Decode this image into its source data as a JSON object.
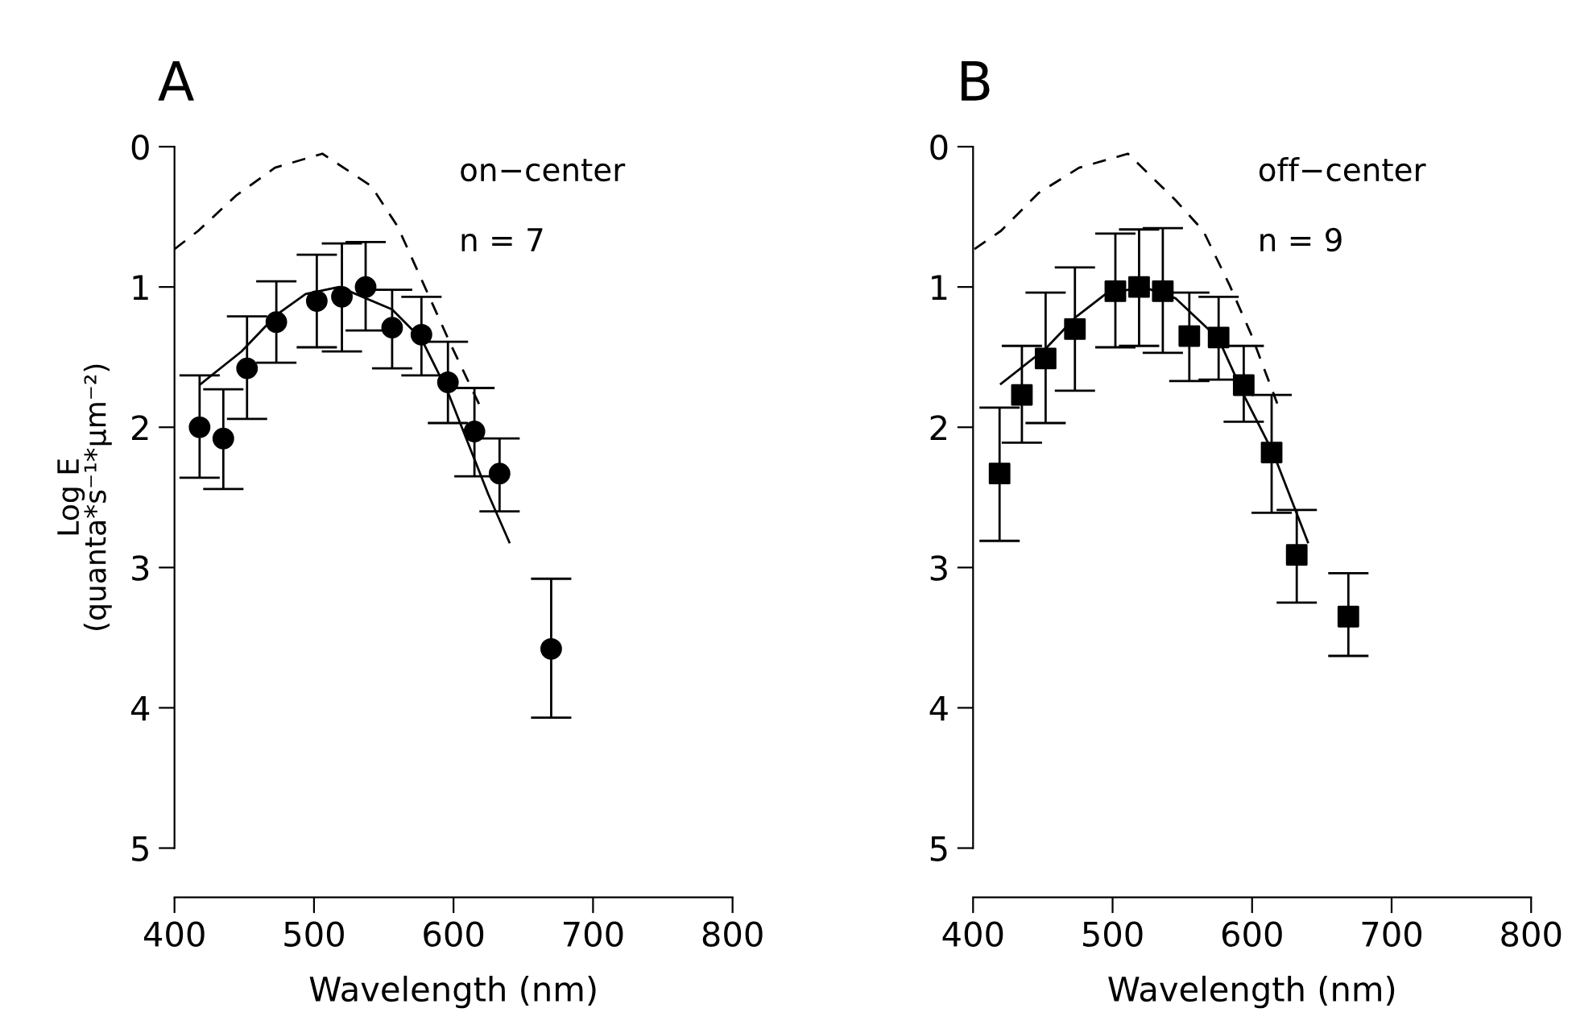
{
  "chart_data": [
    {
      "type": "scatter",
      "title": "A",
      "xlabel": "Wavelength (nm)",
      "ylabel": "Log E\n(quanta*s⁻¹*μm⁻²)",
      "annotations": [
        "on−center",
        "n = 7"
      ],
      "xlim": [
        400,
        800
      ],
      "xticks": [
        400,
        500,
        600,
        700,
        800
      ],
      "ylim": [
        5,
        0
      ],
      "yticks": [
        0,
        1,
        2,
        3,
        4,
        5
      ],
      "series": [
        {
          "type": "line",
          "color": "#000000",
          "line_style": "dashed",
          "x": [
            400,
            417,
            444,
            472,
            506,
            541,
            560,
            579,
            598,
            620
          ],
          "values": [
            0.73,
            0.6,
            0.35,
            0.15,
            0.05,
            0.28,
            0.57,
            0.99,
            1.41,
            1.87
          ]
        },
        {
          "type": "line",
          "color": "#000000",
          "line_style": "solid",
          "x": [
            419,
            448,
            473,
            494,
            518,
            556,
            577,
            596,
            625,
            640
          ],
          "values": [
            1.69,
            1.46,
            1.2,
            1.05,
            1.0,
            1.16,
            1.37,
            1.75,
            2.48,
            2.82
          ]
        },
        {
          "color": "#000000",
          "marker": "circle",
          "x": [
            418,
            435,
            452,
            473,
            502,
            520,
            537,
            556,
            577,
            596,
            615,
            633,
            670
          ],
          "values": [
            2.0,
            2.08,
            1.58,
            1.25,
            1.1,
            1.07,
            1.0,
            1.29,
            1.34,
            1.68,
            2.03,
            2.33,
            3.58
          ],
          "errors": [
            [
              1.63,
              2.36
            ],
            [
              1.73,
              2.44
            ],
            [
              1.21,
              1.94
            ],
            [
              0.96,
              1.54
            ],
            [
              0.77,
              1.43
            ],
            [
              0.69,
              1.46
            ],
            [
              0.68,
              1.31
            ],
            [
              1.02,
              1.58
            ],
            [
              1.07,
              1.63
            ],
            [
              1.39,
              1.97
            ],
            [
              1.72,
              2.35
            ],
            [
              2.08,
              2.6
            ],
            [
              3.08,
              4.07
            ]
          ]
        }
      ]
    },
    {
      "type": "scatter",
      "title": "B",
      "xlabel": "Wavelength (nm)",
      "annotations": [
        "off−center",
        "n = 9"
      ],
      "xlim": [
        400,
        800
      ],
      "xticks": [
        400,
        500,
        600,
        700,
        800
      ],
      "ylim": [
        5,
        0
      ],
      "yticks": [
        0,
        1,
        2,
        3,
        4,
        5
      ],
      "series": [
        {
          "type": "line",
          "color": "#000000",
          "line_style": "dashed",
          "x": [
            401,
            420,
            447,
            476,
            511,
            545,
            565,
            584,
            599,
            618
          ],
          "values": [
            0.73,
            0.6,
            0.33,
            0.15,
            0.05,
            0.38,
            0.6,
            0.99,
            1.33,
            1.83
          ]
        },
        {
          "type": "line",
          "color": "#000000",
          "line_style": "solid",
          "x": [
            420,
            452,
            473,
            495,
            522,
            545,
            576,
            595,
            615,
            640
          ],
          "values": [
            1.69,
            1.44,
            1.22,
            1.05,
            1.0,
            1.08,
            1.37,
            1.79,
            2.18,
            2.82
          ]
        },
        {
          "color": "#000000",
          "marker": "square",
          "x": [
            419,
            435,
            452,
            473,
            502,
            519,
            536,
            555,
            576,
            594,
            614,
            632,
            669
          ],
          "values": [
            2.33,
            1.77,
            1.51,
            1.3,
            1.03,
            1.0,
            1.03,
            1.35,
            1.36,
            1.7,
            2.18,
            2.91,
            3.35
          ],
          "errors": [
            [
              1.86,
              2.81
            ],
            [
              1.42,
              2.11
            ],
            [
              1.04,
              1.97
            ],
            [
              0.86,
              1.74
            ],
            [
              0.62,
              1.43
            ],
            [
              0.59,
              1.42
            ],
            [
              0.58,
              1.47
            ],
            [
              1.04,
              1.67
            ],
            [
              1.07,
              1.66
            ],
            [
              1.42,
              1.96
            ],
            [
              1.77,
              2.61
            ],
            [
              2.59,
              3.25
            ],
            [
              3.04,
              3.63
            ]
          ]
        }
      ]
    }
  ]
}
